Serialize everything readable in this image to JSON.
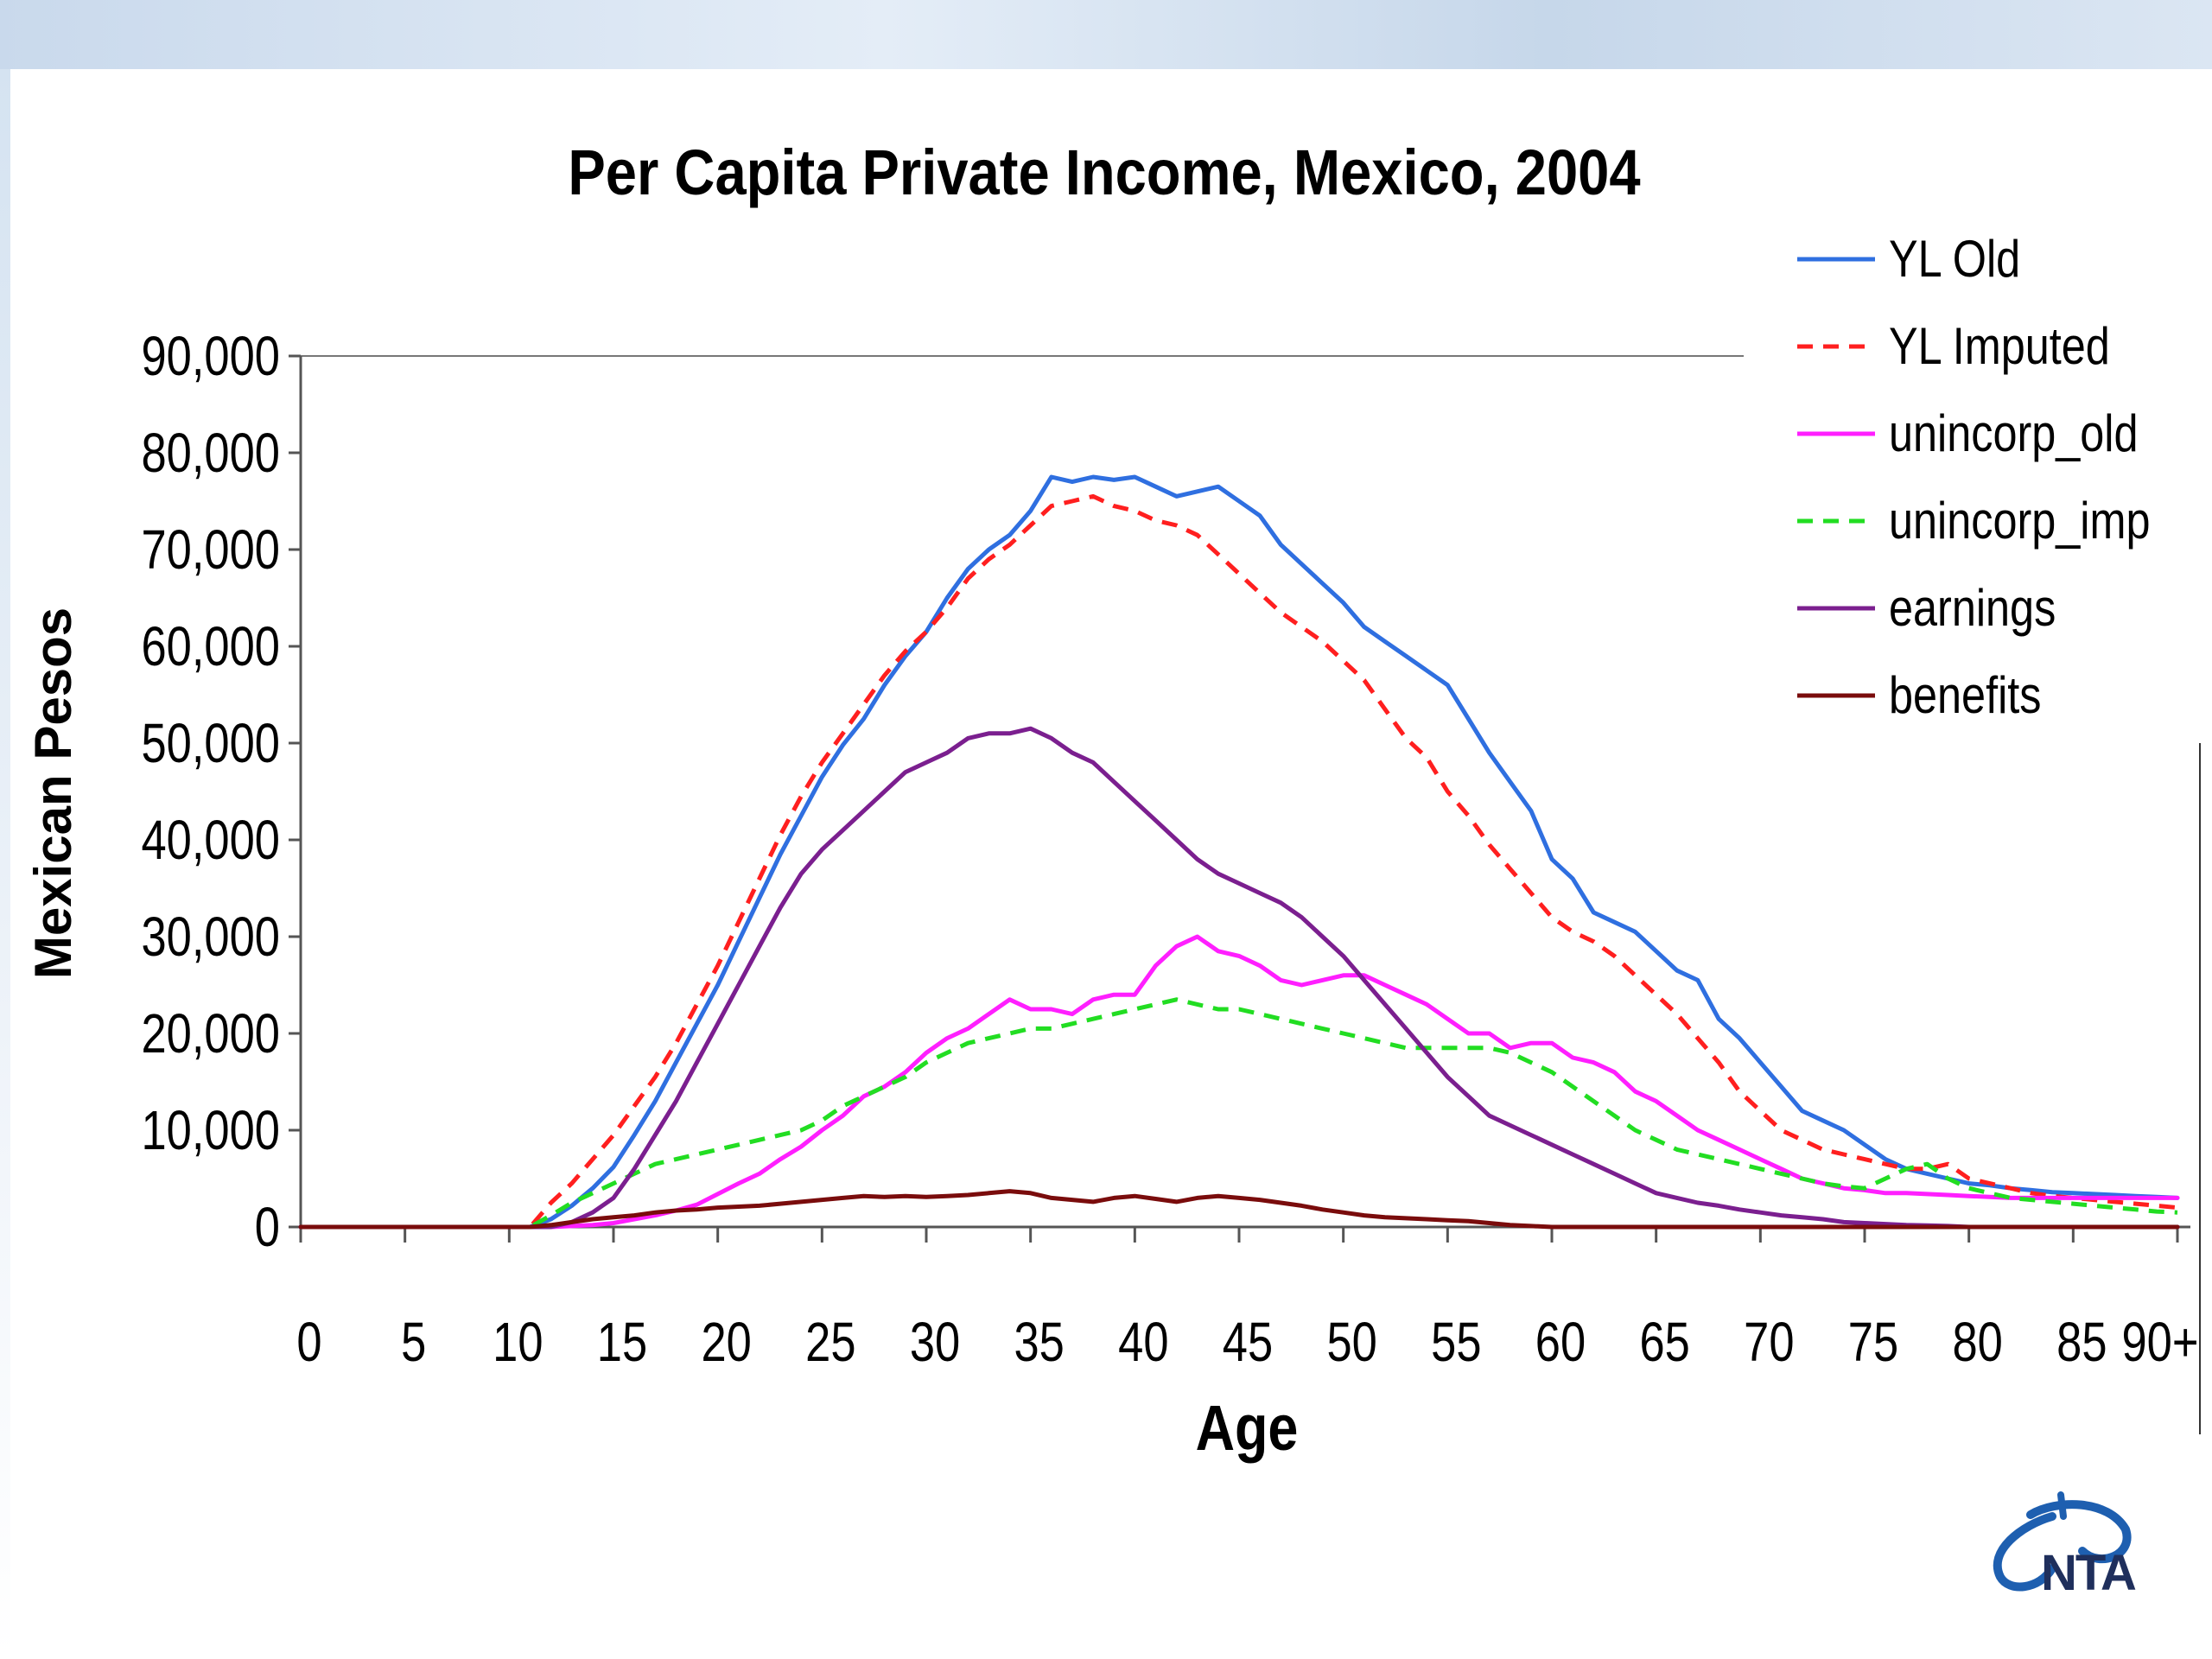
{
  "chart_data": {
    "type": "line",
    "title": "Per Capita Private Income, Mexico, 2004",
    "xlabel": "Age",
    "ylabel": "Mexican Pesos",
    "x_tick_labels": [
      "0",
      "5",
      "10",
      "15",
      "20",
      "25",
      "30",
      "35",
      "40",
      "45",
      "50",
      "55",
      "60",
      "65",
      "70",
      "75",
      "80",
      "85",
      "90+"
    ],
    "y_tick_labels": [
      "0",
      "10,000",
      "20,000",
      "30,000",
      "40,000",
      "50,000",
      "60,000",
      "70,000",
      "80,000",
      "90,000"
    ],
    "ylim": [
      0,
      90000
    ],
    "xlim": [
      0,
      90
    ],
    "grid": false,
    "legend_position": "top-right",
    "x": [
      0,
      1,
      2,
      3,
      4,
      5,
      6,
      7,
      8,
      9,
      10,
      11,
      12,
      13,
      14,
      15,
      16,
      17,
      18,
      19,
      20,
      21,
      22,
      23,
      24,
      25,
      26,
      27,
      28,
      29,
      30,
      31,
      32,
      33,
      34,
      35,
      36,
      37,
      38,
      39,
      40,
      41,
      42,
      43,
      44,
      45,
      46,
      47,
      48,
      49,
      50,
      51,
      52,
      53,
      54,
      55,
      56,
      57,
      58,
      59,
      60,
      61,
      62,
      63,
      64,
      65,
      66,
      67,
      68,
      69,
      70,
      71,
      72,
      73,
      74,
      75,
      76,
      77,
      78,
      79,
      80,
      81,
      82,
      83,
      84,
      85,
      86,
      87,
      88,
      89,
      90
    ],
    "series": [
      {
        "name": "YL Old",
        "color": "#2f6fe0",
        "dash": "solid",
        "values": [
          0,
          0,
          0,
          0,
          0,
          0,
          0,
          0,
          0,
          0,
          0,
          0,
          800,
          2200,
          4000,
          6200,
          9500,
          13000,
          17000,
          21000,
          25000,
          29500,
          34000,
          38500,
          42500,
          46500,
          49800,
          52500,
          56000,
          59000,
          61500,
          65000,
          68000,
          70000,
          71500,
          74000,
          77500,
          77000,
          77500,
          77200,
          77500,
          76500,
          75500,
          76000,
          76500,
          75000,
          73500,
          70500,
          68500,
          66500,
          64500,
          62000,
          60500,
          59000,
          57500,
          56000,
          52500,
          49000,
          46000,
          43000,
          38000,
          36000,
          32500,
          31500,
          30500,
          28500,
          26500,
          25500,
          21500,
          19500,
          17000,
          14500,
          12000,
          11000,
          10000,
          8500,
          7000,
          6000,
          5500,
          5000,
          4500,
          4300,
          4000,
          3800,
          3600,
          3500,
          3400,
          3300,
          3200,
          3100,
          3000
        ]
      },
      {
        "name": "YL Imputed",
        "color": "#ff1f1f",
        "dash": "18 12",
        "values": [
          0,
          0,
          0,
          0,
          0,
          0,
          0,
          0,
          0,
          0,
          0,
          0,
          2500,
          4500,
          7000,
          9500,
          12500,
          15500,
          19000,
          23000,
          27000,
          31500,
          36000,
          40500,
          44500,
          48000,
          51000,
          54000,
          57000,
          59500,
          61500,
          64000,
          67000,
          69000,
          70500,
          72500,
          74500,
          75000,
          75500,
          74500,
          74000,
          73000,
          72500,
          71500,
          69500,
          67500,
          65500,
          63500,
          62000,
          60500,
          58500,
          56500,
          53500,
          50500,
          48500,
          45000,
          42500,
          39500,
          37000,
          34500,
          32000,
          30500,
          29500,
          28000,
          26000,
          24000,
          22000,
          19500,
          17000,
          14000,
          12000,
          10000,
          9000,
          8000,
          7500,
          7000,
          6500,
          6000,
          6000,
          6500,
          5000,
          4500,
          4000,
          3500,
          3200,
          3000,
          2800,
          2600,
          2400,
          2200,
          2000
        ]
      },
      {
        "name": "unincorp_old",
        "color": "#ff1fff",
        "dash": "solid",
        "values": [
          0,
          0,
          0,
          0,
          0,
          0,
          0,
          0,
          0,
          0,
          0,
          0,
          0,
          100,
          200,
          400,
          800,
          1200,
          1700,
          2300,
          3400,
          4500,
          5500,
          7000,
          8300,
          10000,
          11500,
          13500,
          14500,
          16000,
          18000,
          19500,
          20500,
          22000,
          23500,
          22500,
          22500,
          22000,
          23500,
          24000,
          24000,
          27000,
          29000,
          30000,
          28500,
          28000,
          27000,
          25500,
          25000,
          25500,
          26000,
          26000,
          25000,
          24000,
          23000,
          21500,
          20000,
          20000,
          18500,
          19000,
          19000,
          17500,
          17000,
          16000,
          14000,
          13000,
          11500,
          10000,
          9000,
          8000,
          7000,
          6000,
          5000,
          4500,
          4000,
          3800,
          3500,
          3500,
          3400,
          3300,
          3200,
          3100,
          3000,
          3000,
          3000,
          3000,
          3000,
          3000,
          3000,
          3000,
          3000
        ]
      },
      {
        "name": "unincorp_imp",
        "color": "#22dd22",
        "dash": "18 12",
        "values": [
          0,
          0,
          0,
          0,
          0,
          0,
          0,
          0,
          0,
          0,
          0,
          0,
          1200,
          2500,
          3500,
          4500,
          5500,
          6500,
          7000,
          7500,
          8000,
          8500,
          9000,
          9500,
          10000,
          11000,
          12500,
          13500,
          14500,
          15500,
          17000,
          18000,
          19000,
          19500,
          20000,
          20500,
          20500,
          21000,
          21500,
          22000,
          22500,
          23000,
          23500,
          23000,
          22500,
          22500,
          22000,
          21500,
          21000,
          20500,
          20000,
          19500,
          19000,
          18500,
          18500,
          18500,
          18500,
          18500,
          18000,
          17000,
          16000,
          14500,
          13000,
          11500,
          10000,
          9000,
          8000,
          7500,
          7000,
          6500,
          6000,
          5500,
          5000,
          4500,
          4200,
          4000,
          5000,
          6000,
          6500,
          5000,
          4000,
          3500,
          3000,
          2800,
          2600,
          2400,
          2200,
          2000,
          1800,
          1600,
          1500
        ]
      },
      {
        "name": "earnings",
        "color": "#7b1f8f",
        "dash": "solid",
        "values": [
          0,
          0,
          0,
          0,
          0,
          0,
          0,
          0,
          0,
          0,
          0,
          0,
          0,
          500,
          1500,
          3000,
          6000,
          9500,
          13000,
          17000,
          21000,
          25000,
          29000,
          33000,
          36500,
          39000,
          41000,
          43000,
          45000,
          47000,
          48000,
          49000,
          50500,
          51000,
          51000,
          51500,
          50500,
          49000,
          48000,
          46000,
          44000,
          42000,
          40000,
          38000,
          36500,
          35500,
          34500,
          33500,
          32000,
          30000,
          28000,
          25500,
          23000,
          20500,
          18000,
          15500,
          13500,
          11500,
          10500,
          9500,
          8500,
          7500,
          6500,
          5500,
          4500,
          3500,
          3000,
          2500,
          2200,
          1800,
          1500,
          1200,
          1000,
          800,
          500,
          400,
          300,
          200,
          150,
          100,
          0,
          0,
          0,
          0,
          0,
          0,
          0,
          0,
          0,
          0,
          0
        ]
      },
      {
        "name": "benefits",
        "color": "#7a0c0c",
        "dash": "solid",
        "values": [
          0,
          0,
          0,
          0,
          0,
          0,
          0,
          0,
          0,
          0,
          0,
          0,
          200,
          500,
          800,
          1000,
          1200,
          1500,
          1700,
          1800,
          2000,
          2100,
          2200,
          2400,
          2600,
          2800,
          3000,
          3200,
          3100,
          3200,
          3100,
          3200,
          3300,
          3500,
          3700,
          3500,
          3000,
          2800,
          2600,
          3000,
          3200,
          2900,
          2600,
          3000,
          3200,
          3000,
          2800,
          2500,
          2200,
          1800,
          1500,
          1200,
          1000,
          900,
          800,
          700,
          600,
          400,
          200,
          100,
          0,
          0,
          0,
          0,
          0,
          0,
          0,
          0,
          0,
          0,
          0,
          0,
          0,
          0,
          0,
          0,
          0,
          0,
          0,
          0,
          0,
          0,
          0,
          0,
          0,
          0,
          0,
          0,
          0,
          0,
          0
        ]
      }
    ]
  },
  "logo": {
    "text": "NTA"
  }
}
